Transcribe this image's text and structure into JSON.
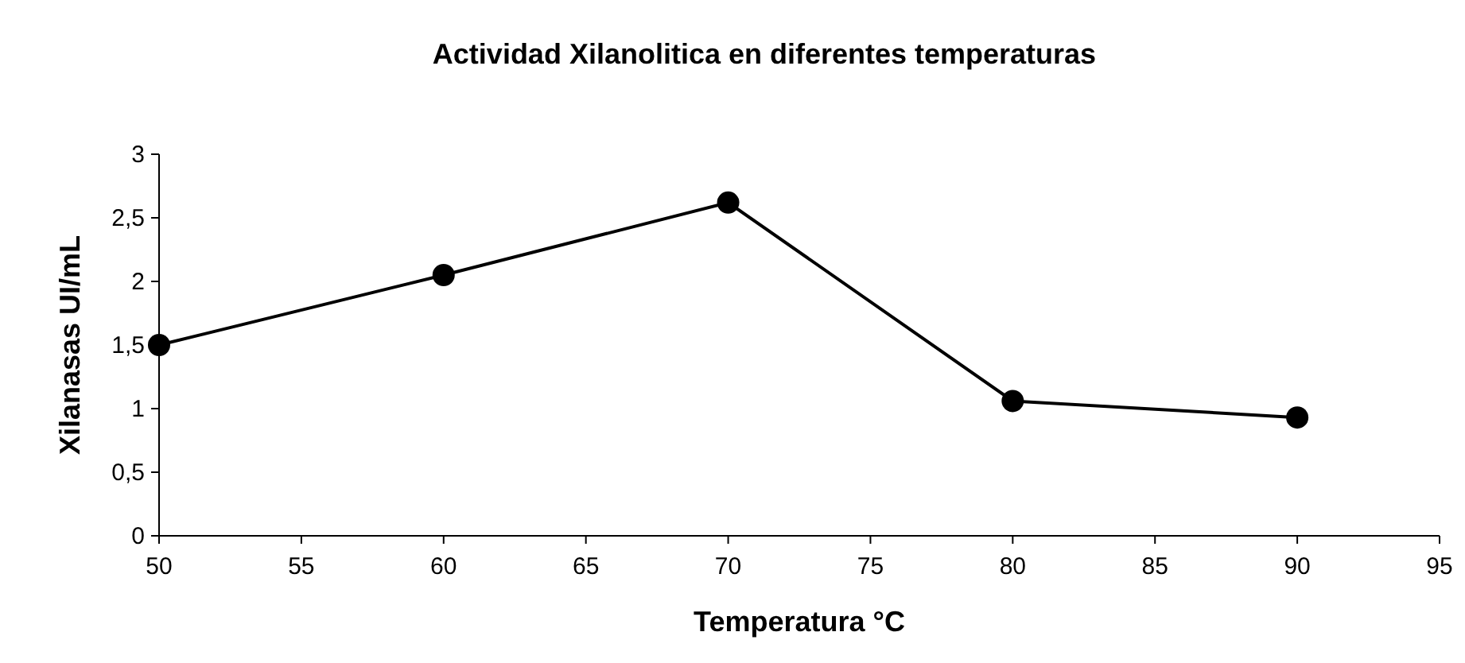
{
  "chart_data": {
    "type": "line",
    "title": "Actividad Xilanolitica en diferentes temperaturas",
    "xlabel": "Temperatura °C",
    "ylabel": "Xilanasas UI/mL",
    "x": [
      50,
      60,
      70,
      80,
      90
    ],
    "series": [
      {
        "color": "#000000",
        "values": [
          1.5,
          2.05,
          2.62,
          1.06,
          0.93
        ]
      }
    ],
    "xlim": [
      50,
      95
    ],
    "xticks": [
      50,
      55,
      60,
      65,
      70,
      75,
      80,
      85,
      90,
      95
    ],
    "ylim": [
      0,
      3
    ],
    "yticks": [
      0,
      {
        "value": 0.5,
        "label": "0,5"
      },
      1,
      {
        "value": 1.5,
        "label": "1,5"
      },
      2,
      {
        "value": 2.5,
        "label": "2,5"
      },
      3
    ],
    "grid": false,
    "marker": "circle",
    "line_style": "solid"
  }
}
